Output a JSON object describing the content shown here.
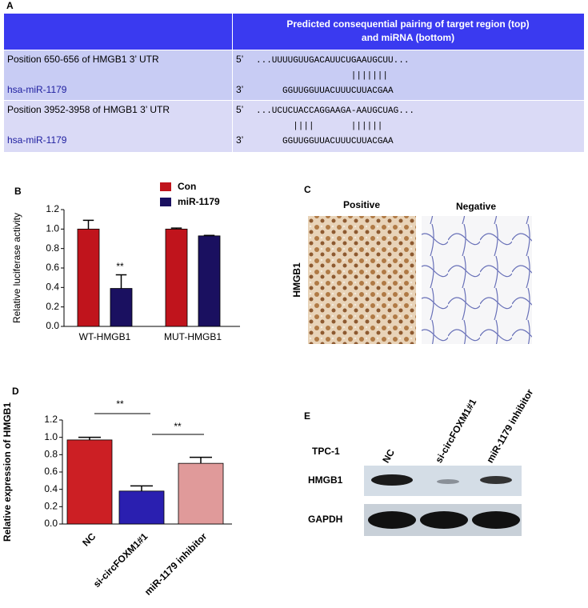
{
  "panel_a": {
    "label": "A",
    "header": [
      "Predicted consequential pairing of target region (top)",
      "and miRNA (bottom)"
    ],
    "rows": [
      {
        "position": "Position 650-656 of HMGB1 3’ UTR",
        "mirna": "hsa-miR-1179",
        "prime5": "5’",
        "target": "...UUUUGUUGACAUUCUGAAUGCUU...",
        "pairing": "|||||||",
        "prime3": "3’",
        "mirna_seq": "GGUUGGUUACUUUCUUACGAA"
      },
      {
        "position": "Position 3952-3958 of HMGB1 3’ UTR",
        "mirna": "hsa-miR-1179",
        "prime5": "5’",
        "target": "...UCUCUACCAGGAAGA-AAUGCUAG...",
        "pairing": "||||       ||||||",
        "prime3": "3’",
        "mirna_seq": "GGUUGGUUACUUUCUUACGAA"
      }
    ]
  },
  "chart_data": [
    {
      "type": "bar",
      "panel": "B",
      "y_label": "Relative luciferase activity",
      "categories": [
        "WT-HMGB1",
        "MUT-HMGB1"
      ],
      "series": [
        {
          "name": "Con",
          "color": "#c0141c",
          "values": [
            1.0,
            1.0
          ],
          "errors": [
            0.09,
            0.01
          ]
        },
        {
          "name": "miR-1179",
          "color": "#1a1060",
          "values": [
            0.39,
            0.93
          ],
          "errors": [
            0.14,
            0.005
          ]
        }
      ],
      "ylim": [
        0,
        1.2
      ],
      "yticks": [
        {
          "value": 0,
          "label": "0.0"
        },
        {
          "value": 0.2,
          "label": "0.2"
        },
        {
          "value": 0.4,
          "label": "0.4"
        },
        {
          "value": 0.6,
          "label": "0.6"
        },
        {
          "value": 0.8,
          "label": "0.8"
        },
        {
          "value": 1.0,
          "label": "1.0"
        },
        {
          "value": 1.2,
          "label": "1.2"
        }
      ],
      "annotations": [
        {
          "text": "**"
        }
      ]
    },
    {
      "type": "bar",
      "panel": "D",
      "y_label": "Relative expression of HMGB1",
      "categories": [
        "NC",
        "si-circFOXM1#1",
        "miR-1179 inhibitor"
      ],
      "values": [
        0.97,
        0.38,
        0.7
      ],
      "errors": [
        0.03,
        0.06,
        0.07
      ],
      "colors": [
        "#cc1f24",
        "#2a1fb0",
        "#e09a9a"
      ],
      "ylim": [
        0,
        1.2
      ],
      "yticks": [
        {
          "value": 0,
          "label": "0.0"
        },
        {
          "value": 0.2,
          "label": "0.2"
        },
        {
          "value": 0.4,
          "label": "0.4"
        },
        {
          "value": 0.6,
          "label": "0.6"
        },
        {
          "value": 0.8,
          "label": "0.8"
        },
        {
          "value": 1.0,
          "label": "1.0"
        },
        {
          "value": 1.2,
          "label": "1.2"
        }
      ],
      "annotations": [
        {
          "text": "**"
        },
        {
          "text": "**"
        }
      ]
    }
  ],
  "panel_c": {
    "label": "C",
    "columns": [
      "Positive",
      "Negative"
    ],
    "row_label": "HMGB1"
  },
  "panel_e": {
    "label": "E",
    "cell_line": "TPC-1",
    "lanes": [
      "NC",
      "si-circFOXM1#1",
      "miR-1179 inhibitor"
    ],
    "proteins": [
      "HMGB1",
      "GAPDH"
    ]
  }
}
